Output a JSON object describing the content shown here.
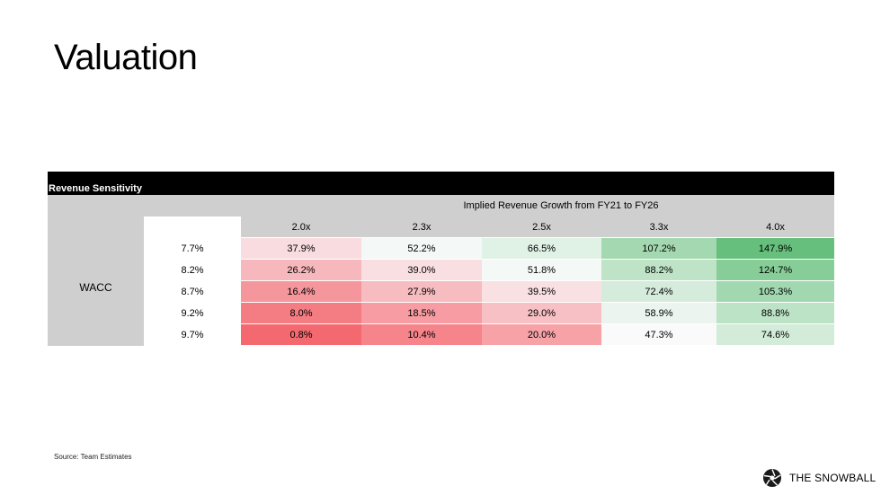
{
  "title": "Valuation",
  "table": {
    "header": "Revenue Sensitivity",
    "row_axis_label": "WACC",
    "column_axis_label": "Implied Revenue Growth from FY21  to FY26",
    "columns": [
      "2.0x",
      "2.3x",
      "2.5x",
      "3.3x",
      "4.0x"
    ],
    "rows": [
      {
        "label": "7.7%",
        "values": [
          "37.9%",
          "52.2%",
          "66.5%",
          "107.2%",
          "147.9%"
        ],
        "colors": [
          "#f9dcdf",
          "#f4f8f6",
          "#e0f1e6",
          "#a3d8b0",
          "#66bf7c"
        ]
      },
      {
        "label": "8.2%",
        "values": [
          "26.2%",
          "39.0%",
          "51.8%",
          "88.2%",
          "124.7%"
        ],
        "colors": [
          "#f7b8bd",
          "#f9dfe2",
          "#f4f8f7",
          "#bee3c7",
          "#86cd98"
        ]
      },
      {
        "label": "8.7%",
        "values": [
          "16.4%",
          "27.9%",
          "39.5%",
          "72.4%",
          "105.3%"
        ],
        "colors": [
          "#f5969c",
          "#f7bcc0",
          "#f9e0e3",
          "#d5ecdc",
          "#a2d8b0"
        ]
      },
      {
        "label": "9.2%",
        "values": [
          "8.0%",
          "18.5%",
          "29.0%",
          "58.9%",
          "88.8%"
        ],
        "colors": [
          "#f47c83",
          "#f69ca2",
          "#f7c0c4",
          "#ebf4ee",
          "#bde3c6"
        ]
      },
      {
        "label": "9.7%",
        "values": [
          "0.8%",
          "10.4%",
          "20.0%",
          "47.3%",
          "74.6%"
        ],
        "colors": [
          "#f3696f",
          "#f5858b",
          "#f6a2a7",
          "#fbfafb",
          "#d3ecda"
        ]
      }
    ]
  },
  "source": "Source: Team Estimates",
  "brand": {
    "name": "THE SNOWBALL",
    "icon": "snowball-aperture-logo"
  }
}
